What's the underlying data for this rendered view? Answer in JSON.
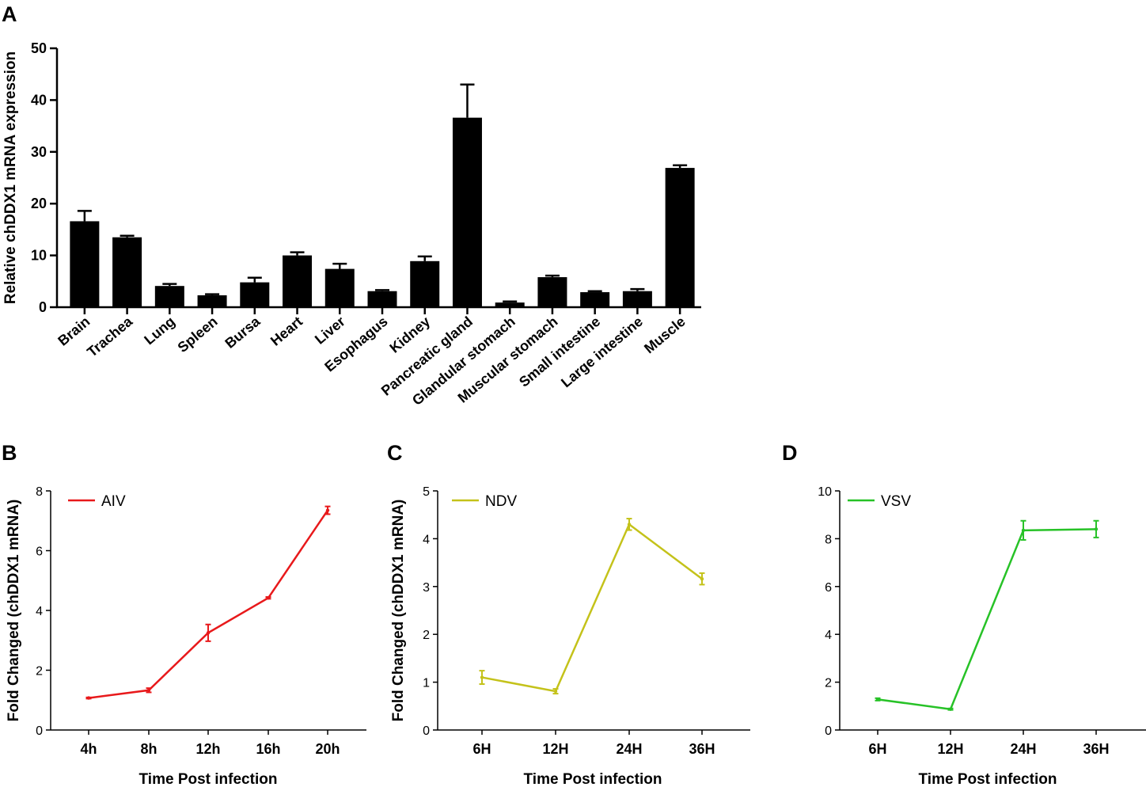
{
  "panels": [
    {
      "letter": "A"
    },
    {
      "letter": "B"
    },
    {
      "letter": "C"
    },
    {
      "letter": "D"
    }
  ],
  "colors": {
    "bars": "#000000",
    "AIV": "#e8191b",
    "NDV": "#c4c21a",
    "VSV": "#27c227"
  },
  "chart_data": [
    {
      "panel": "A",
      "type": "bar",
      "title": "",
      "xlabel": "",
      "ylabel": "Relative chDDX1 mRNA expression",
      "ylim": [
        0,
        50
      ],
      "yticks": [
        "0",
        "10",
        "20",
        "30",
        "40",
        "50"
      ],
      "categories": [
        "Brain",
        "Trachea",
        "Lung",
        "Spleen",
        "Bursa",
        "Heart",
        "Liver",
        "Esophagus",
        "Kidney",
        "Pancreatic gland",
        "Glandular stomach",
        "Muscular stomach",
        "Small intestine",
        "Large intestine",
        "Muscle"
      ],
      "values": [
        16.6,
        13.5,
        4.1,
        2.3,
        4.8,
        10.0,
        7.4,
        3.1,
        8.9,
        36.6,
        0.9,
        5.8,
        2.9,
        3.1,
        26.9
      ],
      "errors": [
        2.0,
        0.3,
        0.4,
        0.2,
        0.9,
        0.6,
        1.0,
        0.2,
        0.9,
        6.4,
        0.2,
        0.3,
        0.2,
        0.4,
        0.5
      ]
    },
    {
      "panel": "B",
      "type": "line",
      "xlabel": "Time Post infection",
      "ylabel": "Fold Changed (chDDX1 mRNA)",
      "ylim": [
        0,
        8
      ],
      "yticks": [
        "0",
        "2",
        "4",
        "6",
        "8"
      ],
      "categories": [
        "4h",
        "8h",
        "12h",
        "16h",
        "20h"
      ],
      "series": [
        {
          "name": "AIV",
          "values": [
            1.07,
            1.33,
            3.25,
            4.42,
            7.35
          ],
          "errors": [
            0.02,
            0.07,
            0.28,
            0.03,
            0.13
          ]
        }
      ]
    },
    {
      "panel": "C",
      "type": "line",
      "xlabel": "Time Post infection",
      "ylabel": "Fold Changed (chDDX1 mRNA)",
      "ylim": [
        0,
        5
      ],
      "yticks": [
        "0",
        "1",
        "2",
        "3",
        "4",
        "5"
      ],
      "categories": [
        "6H",
        "12H",
        "24H",
        "36H"
      ],
      "series": [
        {
          "name": "NDV",
          "values": [
            1.1,
            0.81,
            4.3,
            3.16
          ],
          "errors": [
            0.14,
            0.05,
            0.12,
            0.12
          ]
        }
      ]
    },
    {
      "panel": "D",
      "type": "line",
      "xlabel": "Time Post infection",
      "ylabel": "",
      "ylim": [
        0,
        10
      ],
      "yticks": [
        "0",
        "2",
        "4",
        "6",
        "8",
        "10"
      ],
      "categories": [
        "6H",
        "12H",
        "24H",
        "36H"
      ],
      "series": [
        {
          "name": "VSV",
          "values": [
            1.28,
            0.87,
            8.35,
            8.4
          ],
          "errors": [
            0.05,
            0.03,
            0.4,
            0.35
          ]
        }
      ]
    }
  ]
}
